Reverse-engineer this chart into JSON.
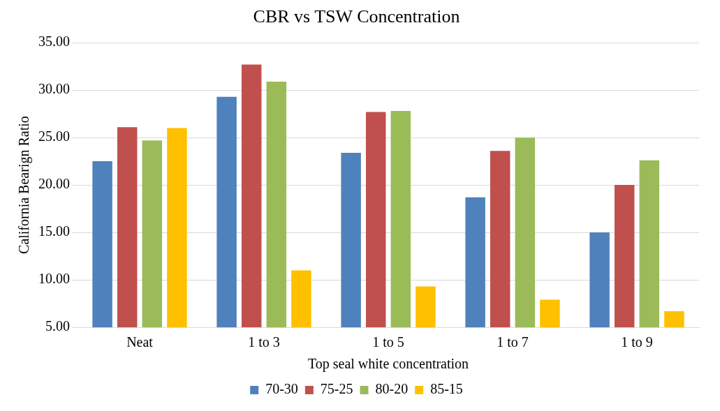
{
  "chart_data": {
    "type": "bar",
    "title": "CBR vs TSW Concentration",
    "xlabel": "Top seal white concentration",
    "ylabel": "California Bearign Ratio",
    "categories": [
      "Neat",
      "1 to 3",
      "1 to 5",
      "1 to 7",
      "1 to 9"
    ],
    "series": [
      {
        "name": "70-30",
        "color": "#4f81bd",
        "values": [
          22.5,
          29.3,
          23.4,
          18.7,
          15.0
        ]
      },
      {
        "name": "75-25",
        "color": "#c0504d",
        "values": [
          26.1,
          32.7,
          27.7,
          23.6,
          20.0
        ]
      },
      {
        "name": "80-20",
        "color": "#9bbb59",
        "values": [
          24.7,
          30.9,
          27.8,
          25.0,
          22.6
        ]
      },
      {
        "name": "85-15",
        "color": "#ffc000",
        "values": [
          26.0,
          11.0,
          9.3,
          7.9,
          6.7
        ]
      }
    ],
    "ylim": [
      5,
      35
    ],
    "yticks": [
      {
        "value": 5,
        "label": "5.00"
      },
      {
        "value": 10,
        "label": "10.00"
      },
      {
        "value": 15,
        "label": "15.00"
      },
      {
        "value": 20,
        "label": "20.00"
      },
      {
        "value": 25,
        "label": "25.00"
      },
      {
        "value": 30,
        "label": "30.00"
      },
      {
        "value": 35,
        "label": "35.00"
      }
    ],
    "grid": "y",
    "legend": "bottom"
  }
}
